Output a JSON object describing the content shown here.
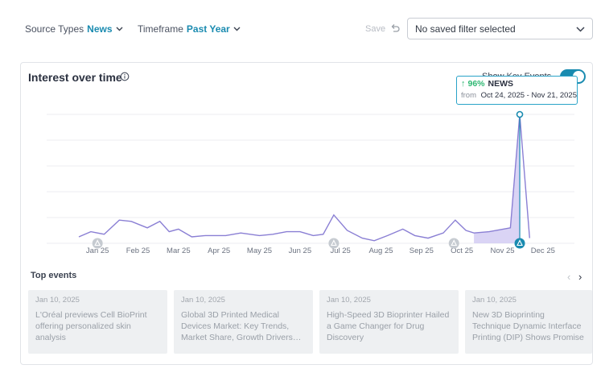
{
  "filters": {
    "source_label": "Source Types",
    "source_value": "News",
    "timeframe_label": "Timeframe",
    "timeframe_value": "Past Year"
  },
  "save_label": "Save",
  "saved_filter": {
    "value": "No saved filter selected"
  },
  "card": {
    "title": "Interest over time",
    "key_events_label": "Show Key Events",
    "key_events_on": true
  },
  "tooltip": {
    "arrow": "↑",
    "percent": "96%",
    "source": "NEWS",
    "from_label": "from",
    "range": "Oct 24, 2025 - Nov 21, 2025"
  },
  "chart_data": {
    "type": "area",
    "x_ticks": [
      "Jan 25",
      "Feb 25",
      "Mar 25",
      "Apr 25",
      "May 25",
      "Jun 25",
      "Jul 25",
      "Aug 25",
      "Sep 25",
      "Oct 25",
      "Nov 25",
      "Dec 25"
    ],
    "y_ticks_shown": false,
    "grid": true,
    "ylim": [
      0,
      100
    ],
    "series": [
      {
        "color": "#8a7fd4",
        "points": [
          [
            "Jan 1",
            5
          ],
          [
            "Jan 10",
            9
          ],
          [
            "Jan 20",
            7
          ],
          [
            "Feb 1",
            18
          ],
          [
            "Feb 10",
            17
          ],
          [
            "Feb 22",
            12
          ],
          [
            "Mar 1",
            17
          ],
          [
            "Mar 8",
            9
          ],
          [
            "Mar 15",
            11
          ],
          [
            "Mar 25",
            5
          ],
          [
            "Apr 5",
            6
          ],
          [
            "Apr 20",
            6
          ],
          [
            "May 1",
            8
          ],
          [
            "May 15",
            6
          ],
          [
            "May 25",
            7
          ],
          [
            "Jun 5",
            9
          ],
          [
            "Jun 15",
            9
          ],
          [
            "Jun 25",
            6
          ],
          [
            "Jul 2",
            7
          ],
          [
            "Jul 10",
            22
          ],
          [
            "Jul 20",
            10
          ],
          [
            "Aug 1",
            4
          ],
          [
            "Aug 10",
            2
          ],
          [
            "Aug 20",
            6
          ],
          [
            "Sep 1",
            11
          ],
          [
            "Sep 10",
            6
          ],
          [
            "Sep 20",
            4
          ],
          [
            "Oct 1",
            8
          ],
          [
            "Oct 10",
            18
          ],
          [
            "Oct 18",
            10
          ],
          [
            "Oct 24",
            8
          ],
          [
            "Nov 5",
            9
          ],
          [
            "Nov 21",
            12
          ],
          [
            "Nov 28",
            100
          ],
          [
            "Dec 5",
            4
          ]
        ],
        "highlight_range": [
          "Oct 24",
          "Nov 21"
        ]
      }
    ],
    "event_markers": [
      "Jan 25",
      "Jul 25",
      "Oct 25",
      "Nov 28"
    ]
  },
  "top_events": {
    "title": "Top events",
    "prev_icon": "chevron-left-icon",
    "next_icon": "chevron-right-icon",
    "items": [
      {
        "date": "Jan 10, 2025",
        "title": "L'Oréal previews Cell BioPrint offering personalized skin analysis"
      },
      {
        "date": "Jan 10, 2025",
        "title": "Global 3D Printed Medical Devices Market: Key Trends, Market Share, Growth Drivers…"
      },
      {
        "date": "Jan 10, 2025",
        "title": "High-Speed 3D Bioprinter Hailed a Game Changer for Drug Discovery"
      },
      {
        "date": "Jan 10, 2025",
        "title": "New 3D Bioprinting Technique Dynamic Interface Printing (DIP) Shows Promise"
      }
    ]
  }
}
